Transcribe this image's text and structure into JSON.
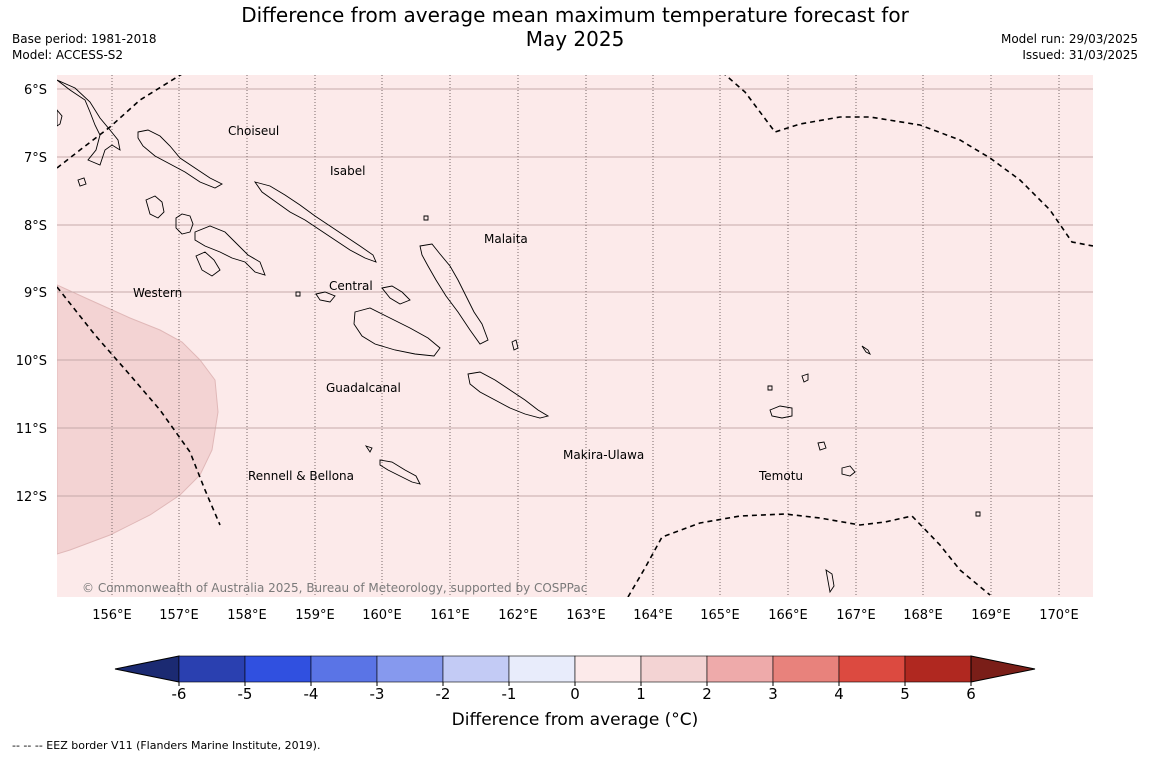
{
  "title_line1": "Difference from average mean maximum temperature forecast for",
  "title_line2": "May 2025",
  "base_period": "Base period: 1981-2018",
  "model": "Model: ACCESS-S2",
  "model_run": "Model run: 29/03/2025",
  "issued": "Issued: 31/03/2025",
  "copyright": "© Commonwealth of Australia 2025, Bureau of Meteorology, supported by COSPPac",
  "lat_labels": [
    "6°S",
    "7°S",
    "8°S",
    "9°S",
    "10°S",
    "11°S",
    "12°S"
  ],
  "lon_labels": [
    "156°E",
    "157°E",
    "158°E",
    "159°E",
    "160°E",
    "161°E",
    "162°E",
    "163°E",
    "164°E",
    "165°E",
    "166°E",
    "167°E",
    "168°E",
    "169°E",
    "170°E"
  ],
  "regions": [
    "Choiseul",
    "Isabel",
    "Malaita",
    "Western",
    "Central",
    "Guadalcanal",
    "Makira-Ulawa",
    "Rennell & Bellona",
    "Temotu"
  ],
  "colorbar": {
    "ticks": [
      "-6",
      "-5",
      "-4",
      "-3",
      "-2",
      "-1",
      "0",
      "1",
      "2",
      "3",
      "4",
      "5",
      "6"
    ],
    "colors": [
      "#1b2a72",
      "#2a40b0",
      "#3050e0",
      "#5a74e6",
      "#8699ee",
      "#c3cbf5",
      "#e8ecfb",
      "#fceaea",
      "#f3d3d3",
      "#eeaaaa",
      "#e8827c",
      "#dc4a40",
      "#b02820",
      "#7a1e18"
    ],
    "label": "Difference from average (°C)"
  },
  "fill_colors": {
    "background": "#fceaea",
    "west_region": "#f3d3d3"
  },
  "footnote": "--  --  -- EEZ border V11 (Flanders Marine Institute, 2019)."
}
